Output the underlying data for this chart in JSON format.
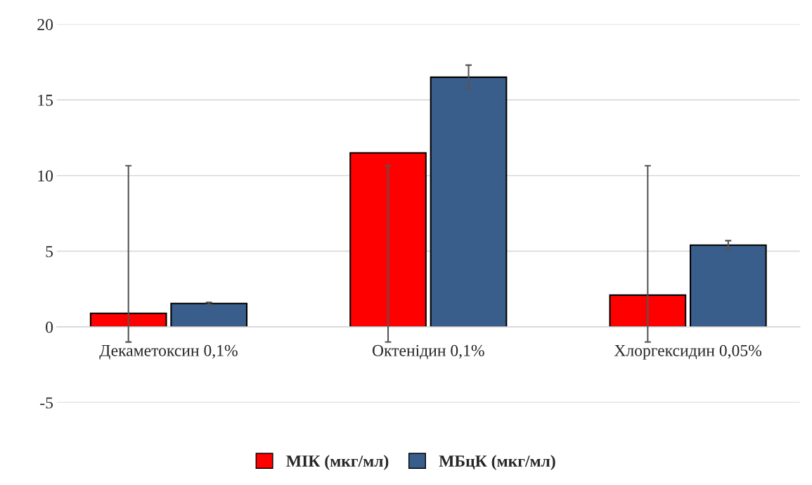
{
  "chart_data": {
    "type": "bar",
    "categories": [
      "Декаметоксин 0,1%",
      "Октенідин 0,1%",
      "Хлоргексидин 0,05%"
    ],
    "series": [
      {
        "name": "МІК (мкг/мл)",
        "color": "#ff0000",
        "values": [
          0.9,
          11.5,
          2.1
        ],
        "errors": [
          [
            -1,
            10.65
          ],
          [
            -1,
            10.65
          ],
          [
            -1,
            10.65
          ]
        ]
      },
      {
        "name": "МБцК (мкг/мл)",
        "color": "#3a5e8c",
        "values": [
          1.55,
          16.5,
          5.4
        ],
        "errors": [
          0.07,
          0.8,
          0.3
        ]
      }
    ],
    "ylim": [
      -5,
      20
    ],
    "yticks": [
      -5,
      0,
      5,
      10,
      15,
      20
    ],
    "grid": "y",
    "legend": "bottom"
  }
}
